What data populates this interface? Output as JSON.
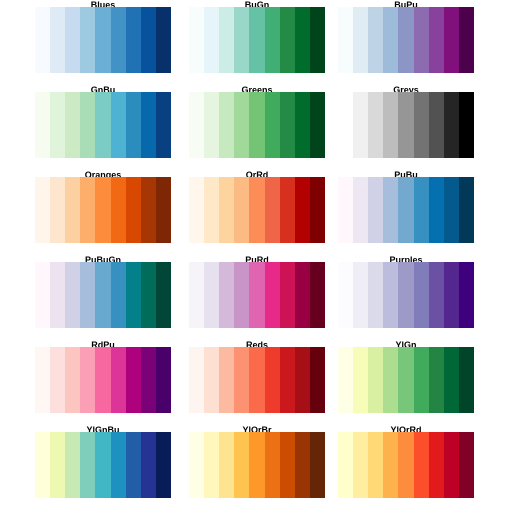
{
  "palettes": [
    {
      "name": "Blues",
      "colors": [
        "#f7fbff",
        "#deebf7",
        "#c6dbef",
        "#9ecae1",
        "#6baed6",
        "#4292c6",
        "#2171b5",
        "#08519c",
        "#08306b"
      ]
    },
    {
      "name": "BuGn",
      "colors": [
        "#f7fcfd",
        "#e5f5f9",
        "#ccece6",
        "#99d8c9",
        "#66c2a4",
        "#41ae76",
        "#238b45",
        "#006d2c",
        "#00441b"
      ]
    },
    {
      "name": "BuPu",
      "colors": [
        "#f7fcfd",
        "#e0ecf4",
        "#bfd3e6",
        "#9ebcda",
        "#8c96c6",
        "#8c6bb1",
        "#88419d",
        "#810f7c",
        "#4d004b"
      ]
    },
    {
      "name": "GnBu",
      "colors": [
        "#f7fcf0",
        "#e0f3db",
        "#ccebc5",
        "#a8ddb5",
        "#7bccc4",
        "#4eb3d3",
        "#2b8cbe",
        "#0868ac",
        "#084081"
      ]
    },
    {
      "name": "Greens",
      "colors": [
        "#f7fcf5",
        "#e5f5e0",
        "#c7e9c0",
        "#a1d99b",
        "#74c476",
        "#41ab5d",
        "#238b45",
        "#006d2c",
        "#00441b"
      ]
    },
    {
      "name": "Greys",
      "colors": [
        "#ffffff",
        "#f0f0f0",
        "#d9d9d9",
        "#bdbdbd",
        "#969696",
        "#737373",
        "#525252",
        "#252525",
        "#000000"
      ]
    },
    {
      "name": "Oranges",
      "colors": [
        "#fff5eb",
        "#fee6ce",
        "#fdd0a2",
        "#fdae6b",
        "#fd8d3c",
        "#f16913",
        "#d94801",
        "#a63603",
        "#7f2704"
      ]
    },
    {
      "name": "OrRd",
      "colors": [
        "#fff7ec",
        "#fee8c8",
        "#fdd49e",
        "#fdbb84",
        "#fc8d59",
        "#ef6548",
        "#d7301f",
        "#b30000",
        "#7f0000"
      ]
    },
    {
      "name": "PuBu",
      "colors": [
        "#fff7fb",
        "#ece7f2",
        "#d0d1e6",
        "#a6bddb",
        "#74a9cf",
        "#3690c0",
        "#0570b0",
        "#045a8d",
        "#023858"
      ]
    },
    {
      "name": "PuBuGn",
      "colors": [
        "#fff7fb",
        "#ece2f0",
        "#d0d1e6",
        "#a6bddb",
        "#67a9cf",
        "#3690c0",
        "#02818a",
        "#016c59",
        "#014636"
      ]
    },
    {
      "name": "PuRd",
      "colors": [
        "#f7f4f9",
        "#e7e1ef",
        "#d4b9da",
        "#c994c7",
        "#df65b0",
        "#e7298a",
        "#ce1256",
        "#980043",
        "#67001f"
      ]
    },
    {
      "name": "Purples",
      "colors": [
        "#fcfbfd",
        "#efedf5",
        "#dadaeb",
        "#bcbddc",
        "#9e9ac8",
        "#807dba",
        "#6a51a3",
        "#54278f",
        "#3f007d"
      ]
    },
    {
      "name": "RdPu",
      "colors": [
        "#fff7f3",
        "#fde0dd",
        "#fcc5c0",
        "#fa9fb5",
        "#f768a1",
        "#dd3497",
        "#ae017e",
        "#7a0177",
        "#49006a"
      ]
    },
    {
      "name": "Reds",
      "colors": [
        "#fff5f0",
        "#fee0d2",
        "#fcbba1",
        "#fc9272",
        "#fb6a4a",
        "#ef3b2c",
        "#cb181d",
        "#a50f15",
        "#67000d"
      ]
    },
    {
      "name": "YlGn",
      "colors": [
        "#ffffe5",
        "#f7fcb9",
        "#d9f0a3",
        "#addd8e",
        "#78c679",
        "#41ab5d",
        "#238443",
        "#006837",
        "#004529"
      ]
    },
    {
      "name": "YlGnBu",
      "colors": [
        "#ffffd9",
        "#edf8b1",
        "#c7e9b4",
        "#7fcdbb",
        "#41b6c4",
        "#1d91c0",
        "#225ea8",
        "#253494",
        "#081d58"
      ]
    },
    {
      "name": "YlOrBr",
      "colors": [
        "#ffffe5",
        "#fff7bc",
        "#fee391",
        "#fec44f",
        "#fe9929",
        "#ec7014",
        "#cc4c02",
        "#993404",
        "#662506"
      ]
    },
    {
      "name": "YlOrRd",
      "colors": [
        "#ffffcc",
        "#ffeda0",
        "#fed976",
        "#feb24c",
        "#fd8d3c",
        "#fc4e2a",
        "#e31a1c",
        "#bd0026",
        "#800026"
      ]
    }
  ]
}
